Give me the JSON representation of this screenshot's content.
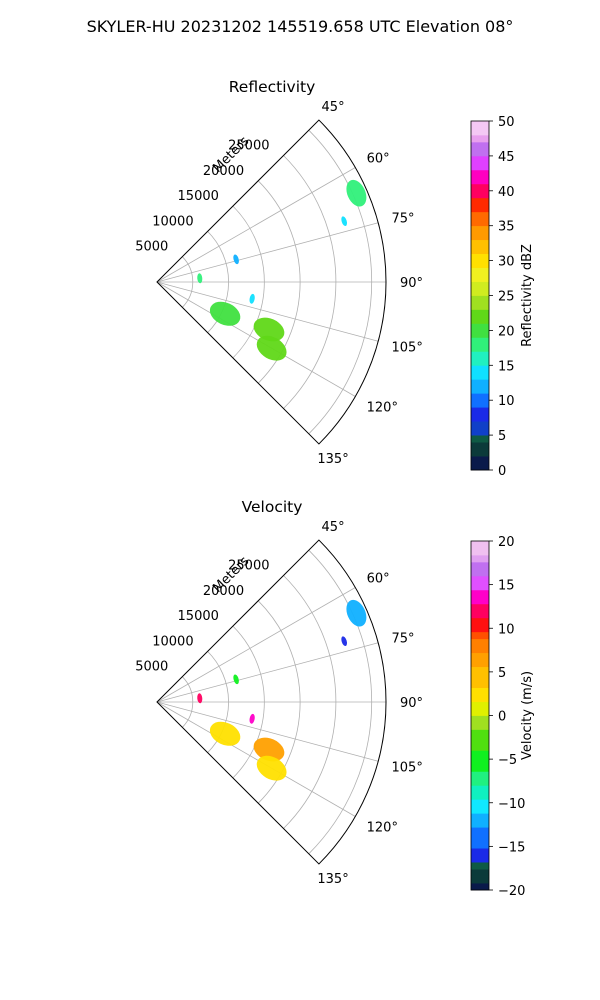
{
  "title": "SKYLER-HU  20231202  145519.658 UTC Elevation 08°",
  "chart_data": [
    {
      "type": "ppi-sector",
      "panel": "reflectivity",
      "title": "Reflectivity",
      "range_label": "Meters",
      "azimuth_range_deg": [
        45,
        135
      ],
      "range_max_m": 32000,
      "range_ticks": [
        "5000",
        "10000",
        "15000",
        "20000",
        "25000"
      ],
      "azimuth_ticks": [
        "45°",
        "60°",
        "75°",
        "90°",
        "105°",
        "120°",
        "135°"
      ],
      "colorbar": {
        "label": "Reflectivity dBZ",
        "min": 0,
        "max": 50,
        "ticks": [
          "0",
          "5",
          "10",
          "15",
          "20",
          "25",
          "30",
          "35",
          "40",
          "45",
          "50"
        ]
      },
      "echoes": [
        {
          "azimuth_deg": 66,
          "range_m": 30500,
          "value_dbz": 17
        },
        {
          "azimuth_deg": 72,
          "range_m": 27500,
          "value_dbz": 13
        },
        {
          "azimuth_deg": 74,
          "range_m": 11500,
          "value_dbz": 12
        },
        {
          "azimuth_deg": 85,
          "range_m": 6000,
          "value_dbz": 17
        },
        {
          "azimuth_deg": 100,
          "range_m": 13500,
          "value_dbz": 13
        },
        {
          "azimuth_deg": 115,
          "range_m": 10500,
          "value_dbz": 20
        },
        {
          "azimuth_deg": 113,
          "range_m": 17000,
          "value_dbz": 21
        },
        {
          "azimuth_deg": 120,
          "range_m": 18500,
          "value_dbz": 22
        }
      ]
    },
    {
      "type": "ppi-sector",
      "panel": "velocity",
      "title": "Velocity",
      "range_label": "Meters",
      "azimuth_range_deg": [
        45,
        135
      ],
      "range_max_m": 32000,
      "range_ticks": [
        "5000",
        "10000",
        "15000",
        "20000",
        "25000"
      ],
      "azimuth_ticks": [
        "45°",
        "60°",
        "75°",
        "90°",
        "105°",
        "120°",
        "135°"
      ],
      "colorbar": {
        "label": "Velocity (m/s)",
        "min": -20,
        "max": 20,
        "ticks": [
          "−20",
          "−15",
          "−10",
          "−5",
          "0",
          "5",
          "10",
          "15",
          "20"
        ]
      },
      "echoes": [
        {
          "azimuth_deg": 66,
          "range_m": 30500,
          "value_ms": -12
        },
        {
          "azimuth_deg": 72,
          "range_m": 27500,
          "value_ms": -15
        },
        {
          "azimuth_deg": 74,
          "range_m": 11500,
          "value_ms": -6
        },
        {
          "azimuth_deg": 85,
          "range_m": 6000,
          "value_ms": 12
        },
        {
          "azimuth_deg": 100,
          "range_m": 13500,
          "value_ms": 14
        },
        {
          "azimuth_deg": 115,
          "range_m": 10500,
          "value_ms": 3
        },
        {
          "azimuth_deg": 113,
          "range_m": 17000,
          "value_ms": 6
        },
        {
          "azimuth_deg": 120,
          "range_m": 18500,
          "value_ms": 2
        }
      ]
    }
  ]
}
